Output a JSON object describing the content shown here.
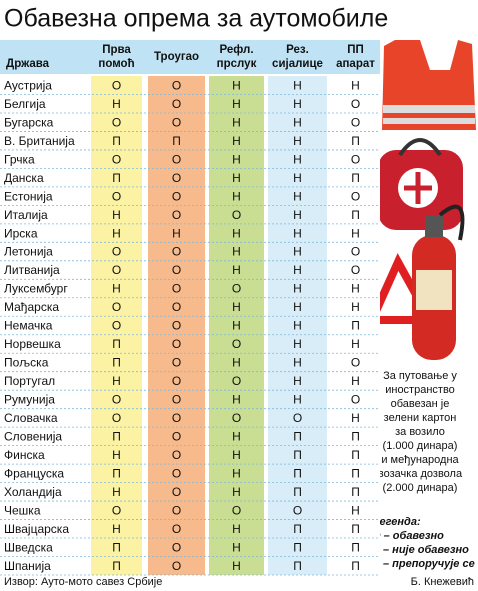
{
  "title": "Обавезна опрема за аутомобиле",
  "table": {
    "header": [
      [
        "Држава"
      ],
      [
        "Прва",
        "помоћ"
      ],
      [
        "Троугао"
      ],
      [
        "Рефл.",
        "прслук"
      ],
      [
        "Рез.",
        "сијалице"
      ],
      [
        "ПП",
        "апарат"
      ]
    ],
    "rows": [
      [
        "Аустрија",
        "О",
        "О",
        "Н",
        "Н",
        "Н"
      ],
      [
        "Белгија",
        "Н",
        "О",
        "Н",
        "Н",
        "О"
      ],
      [
        "Бугарска",
        "О",
        "О",
        "Н",
        "Н",
        "О"
      ],
      [
        "В. Британија",
        "П",
        "П",
        "Н",
        "Н",
        "П"
      ],
      [
        "Грчка",
        "О",
        "О",
        "Н",
        "Н",
        "О"
      ],
      [
        "Данска",
        "П",
        "О",
        "Н",
        "Н",
        "П"
      ],
      [
        "Естонија",
        "О",
        "О",
        "Н",
        "Н",
        "О"
      ],
      [
        "Италија",
        "Н",
        "О",
        "О",
        "Н",
        "П"
      ],
      [
        "Ирска",
        "Н",
        "Н",
        "Н",
        "Н",
        "Н"
      ],
      [
        "Летонија",
        "О",
        "О",
        "Н",
        "Н",
        "О"
      ],
      [
        "Литванија",
        "О",
        "О",
        "Н",
        "Н",
        "О"
      ],
      [
        "Луксембург",
        "Н",
        "О",
        "О",
        "Н",
        "Н"
      ],
      [
        "Мађарска",
        "О",
        "О",
        "Н",
        "Н",
        "Н"
      ],
      [
        "Немачка",
        "О",
        "О",
        "Н",
        "Н",
        "П"
      ],
      [
        "Норвешка",
        "П",
        "О",
        "О",
        "Н",
        "Н"
      ],
      [
        "Пољска",
        "П",
        "О",
        "Н",
        "Н",
        "О"
      ],
      [
        "Португал",
        "Н",
        "О",
        "О",
        "Н",
        "Н"
      ],
      [
        "Румунија",
        "О",
        "О",
        "Н",
        "Н",
        "О"
      ],
      [
        "Словачка",
        "О",
        "О",
        "О",
        "О",
        "Н"
      ],
      [
        "Словенија",
        "П",
        "О",
        "Н",
        "П",
        "П"
      ],
      [
        "Финска",
        "Н",
        "О",
        "Н",
        "П",
        "П"
      ],
      [
        "Француска",
        "П",
        "О",
        "Н",
        "П",
        "П"
      ],
      [
        "Холандија",
        "Н",
        "О",
        "Н",
        "П",
        "П"
      ],
      [
        "Чешка",
        "О",
        "О",
        "О",
        "О",
        "Н"
      ],
      [
        "Швајцарска",
        "Н",
        "О",
        "Н",
        "П",
        "П"
      ],
      [
        "Шведска",
        "П",
        "О",
        "Н",
        "П",
        "П"
      ],
      [
        "Шпанија",
        "П",
        "О",
        "Н",
        "П",
        "П"
      ]
    ]
  },
  "note": [
    "За путовање у",
    "иностранство",
    "обавезан је",
    "зелени картон",
    "за возило",
    "(1.000 динара)",
    "и међународна",
    "возачка дозвола",
    "(2.000 динара)"
  ],
  "legend": {
    "title": "Легенда:",
    "items": [
      "О – обавезно",
      "Н – није обавезно",
      "П – препоручује се"
    ]
  },
  "footer": {
    "source": "Извор: Ауто-мото савез Србије",
    "author": "Б. Кнежевић"
  }
}
